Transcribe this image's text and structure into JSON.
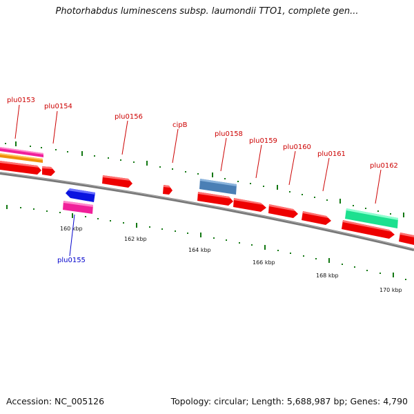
{
  "title": "Photorhabdus luminescens subsp. laumondii TTO1, complete gen...",
  "footer": {
    "accession": "Accession: NC_005126",
    "topology": "Topology: circular; Length: 5,688,987 bp; Genes: 4,790"
  },
  "colors": {
    "gene_red": "#ee0000",
    "gene_blue": "#0a14e0",
    "gene_pink": "#f0209a",
    "gene_orange": "#f0900a",
    "gene_steelblue": "#4a7fb5",
    "gene_aqua": "#1de08f",
    "backbone": "#777777",
    "tick_green": "#117711",
    "label_red": "#cc0000",
    "label_blue": "#0000cc"
  },
  "genes": {
    "plu0153": "plu0153",
    "plu0154": "plu0154",
    "plu0155": "plu0155",
    "plu0156": "plu0156",
    "cipB": "cipB",
    "plu0158": "plu0158",
    "plu0159": "plu0159",
    "plu0160": "plu0160",
    "plu0161": "plu0161",
    "plu0162": "plu0162"
  },
  "scale": {
    "t160": "160 kbp",
    "t162": "162 kbp",
    "t164": "164 kbp",
    "t166": "166 kbp",
    "t168": "168 kbp",
    "t170": "170 kbp"
  }
}
